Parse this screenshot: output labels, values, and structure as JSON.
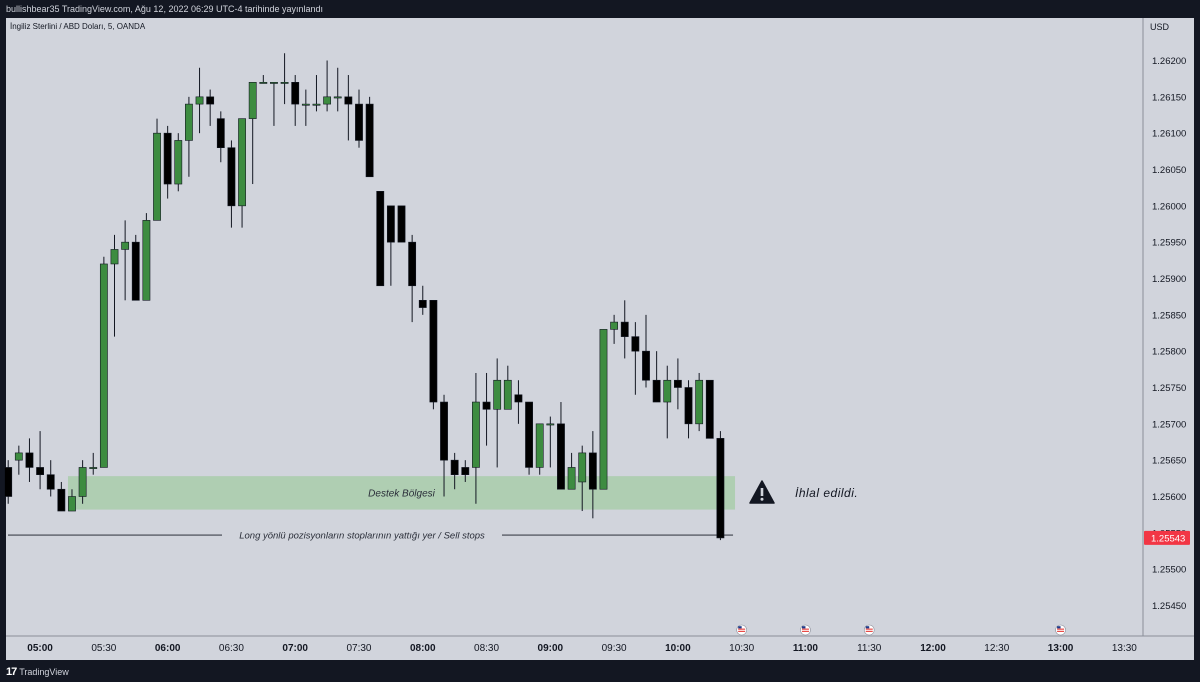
{
  "header": {
    "publish_line": "bullishbear35 TradingView.com, Ağu 12, 2022 06:29 UTC-4 tarihinde yayınlandı"
  },
  "symbol": {
    "title": "İngiliz Sterlini / ABD Doları, 5, OANDA"
  },
  "footer": {
    "brand": "TradingView",
    "logo_mark": "17"
  },
  "colors": {
    "up": "#3d8c40",
    "down": "#000000",
    "zone": "#a9ccaa",
    "price_badge": "#f23645",
    "background": "#d1d4dc"
  },
  "chart_data": {
    "type": "candlestick",
    "currency": "USD",
    "ylim": [
      1.2541,
      1.2627
    ],
    "y_ticks": [
      "1.26200",
      "1.26150",
      "1.26100",
      "1.26050",
      "1.26000",
      "1.25950",
      "1.25900",
      "1.25850",
      "1.25800",
      "1.25750",
      "1.25700",
      "1.25650",
      "1.25600",
      "1.25550",
      "1.25500",
      "1.25450"
    ],
    "x_ticks": [
      {
        "label": "05:00",
        "bold": true
      },
      {
        "label": "05:30",
        "bold": false
      },
      {
        "label": "06:00",
        "bold": true
      },
      {
        "label": "06:30",
        "bold": false
      },
      {
        "label": "07:00",
        "bold": true
      },
      {
        "label": "07:30",
        "bold": false
      },
      {
        "label": "08:00",
        "bold": true
      },
      {
        "label": "08:30",
        "bold": false
      },
      {
        "label": "09:00",
        "bold": true
      },
      {
        "label": "09:30",
        "bold": false
      },
      {
        "label": "10:00",
        "bold": true
      },
      {
        "label": "10:30",
        "bold": false
      },
      {
        "label": "11:00",
        "bold": true
      },
      {
        "label": "11:30",
        "bold": false
      },
      {
        "label": "12:00",
        "bold": true
      },
      {
        "label": "12:30",
        "bold": false
      },
      {
        "label": "13:00",
        "bold": true
      },
      {
        "label": "13:30",
        "bold": false
      }
    ],
    "x_tick_start_index": 3,
    "bars_per_tick": 6,
    "last_price": "1.25543",
    "candles": [
      [
        1.2564,
        1.2565,
        1.2559,
        1.256
      ],
      [
        1.2565,
        1.2567,
        1.2563,
        1.2566
      ],
      [
        1.2566,
        1.2568,
        1.2562,
        1.2564
      ],
      [
        1.2564,
        1.2569,
        1.2561,
        1.2563
      ],
      [
        1.2563,
        1.2565,
        1.256,
        1.2561
      ],
      [
        1.2561,
        1.2562,
        1.2558,
        1.2558
      ],
      [
        1.2558,
        1.2561,
        1.2558,
        1.256
      ],
      [
        1.256,
        1.2565,
        1.2559,
        1.2564
      ],
      [
        1.2564,
        1.2566,
        1.2563,
        1.2564
      ],
      [
        1.2564,
        1.2593,
        1.2564,
        1.2592
      ],
      [
        1.2592,
        1.2596,
        1.2582,
        1.2594
      ],
      [
        1.2594,
        1.2598,
        1.2587,
        1.2595
      ],
      [
        1.2595,
        1.2596,
        1.2587,
        1.2587
      ],
      [
        1.2587,
        1.2599,
        1.2587,
        1.2598
      ],
      [
        1.2598,
        1.2612,
        1.2598,
        1.261
      ],
      [
        1.261,
        1.2611,
        1.2601,
        1.2603
      ],
      [
        1.2603,
        1.261,
        1.2602,
        1.2609
      ],
      [
        1.2609,
        1.2615,
        1.2604,
        1.2614
      ],
      [
        1.2614,
        1.2619,
        1.261,
        1.2615
      ],
      [
        1.2615,
        1.2616,
        1.2611,
        1.2614
      ],
      [
        1.2612,
        1.2613,
        1.2606,
        1.2608
      ],
      [
        1.2608,
        1.2609,
        1.2597,
        1.26
      ],
      [
        1.26,
        1.2612,
        1.2597,
        1.2612
      ],
      [
        1.2612,
        1.2617,
        1.2603,
        1.2617
      ],
      [
        1.2617,
        1.2618,
        1.2617,
        1.2617
      ],
      [
        1.2617,
        1.2617,
        1.2611,
        1.2617
      ],
      [
        1.2617,
        1.2621,
        1.2614,
        1.2617
      ],
      [
        1.2617,
        1.2618,
        1.2611,
        1.2614
      ],
      [
        1.2614,
        1.2616,
        1.2611,
        1.2614
      ],
      [
        1.2614,
        1.2618,
        1.2613,
        1.2614
      ],
      [
        1.2614,
        1.262,
        1.2613,
        1.2615
      ],
      [
        1.2615,
        1.2619,
        1.2613,
        1.2615
      ],
      [
        1.2615,
        1.2618,
        1.2609,
        1.2614
      ],
      [
        1.2614,
        1.2616,
        1.2608,
        1.2609
      ],
      [
        1.2614,
        1.2615,
        1.2604,
        1.2604
      ],
      [
        1.2602,
        1.2602,
        1.2589,
        1.2589
      ],
      [
        1.26,
        1.26,
        1.2589,
        1.2595
      ],
      [
        1.26,
        1.26,
        1.2595,
        1.2595
      ],
      [
        1.2595,
        1.2596,
        1.2584,
        1.2589
      ],
      [
        1.2587,
        1.2589,
        1.2585,
        1.2586
      ],
      [
        1.2587,
        1.2587,
        1.2572,
        1.2573
      ],
      [
        1.2573,
        1.2574,
        1.256,
        1.2565
      ],
      [
        1.2565,
        1.2566,
        1.2561,
        1.2563
      ],
      [
        1.2564,
        1.2565,
        1.2562,
        1.2563
      ],
      [
        1.2564,
        1.2577,
        1.2559,
        1.2573
      ],
      [
        1.2573,
        1.2577,
        1.2567,
        1.2572
      ],
      [
        1.2572,
        1.2579,
        1.2564,
        1.2576
      ],
      [
        1.2572,
        1.2578,
        1.2572,
        1.2576
      ],
      [
        1.2574,
        1.2576,
        1.257,
        1.2573
      ],
      [
        1.2573,
        1.2573,
        1.2563,
        1.2564
      ],
      [
        1.2564,
        1.257,
        1.2563,
        1.257
      ],
      [
        1.257,
        1.2571,
        1.2564,
        1.257
      ],
      [
        1.257,
        1.2573,
        1.2561,
        1.2561
      ],
      [
        1.2561,
        1.2566,
        1.2561,
        1.2564
      ],
      [
        1.2562,
        1.2567,
        1.2558,
        1.2566
      ],
      [
        1.2566,
        1.2569,
        1.2557,
        1.2561
      ],
      [
        1.2561,
        1.2583,
        1.2561,
        1.2583
      ],
      [
        1.2583,
        1.2585,
        1.2581,
        1.2584
      ],
      [
        1.2584,
        1.2587,
        1.2579,
        1.2582
      ],
      [
        1.2582,
        1.2584,
        1.2574,
        1.258
      ],
      [
        1.258,
        1.2585,
        1.2575,
        1.2576
      ],
      [
        1.2576,
        1.258,
        1.2573,
        1.2573
      ],
      [
        1.2573,
        1.2578,
        1.2568,
        1.2576
      ],
      [
        1.2576,
        1.2579,
        1.2572,
        1.2575
      ],
      [
        1.2575,
        1.2576,
        1.2568,
        1.257
      ],
      [
        1.257,
        1.2577,
        1.2569,
        1.2576
      ],
      [
        1.2576,
        1.2576,
        1.2568,
        1.2568
      ],
      [
        1.2568,
        1.2569,
        1.2554,
        1.25543
      ]
    ],
    "support_zone": {
      "label": "Destek Bölgesi",
      "top": 1.25628,
      "bottom": 1.25582
    },
    "stops_line": {
      "price": 1.25547,
      "label": "Long yönlü pozisyonların stoplarının yattığı yer /  Sell stops"
    },
    "annotation": {
      "text": "İhlal edildi.",
      "icon": "warning-triangle-icon"
    },
    "event_markers": [
      "10:30",
      "11:00",
      "11:30",
      "13:00"
    ]
  }
}
